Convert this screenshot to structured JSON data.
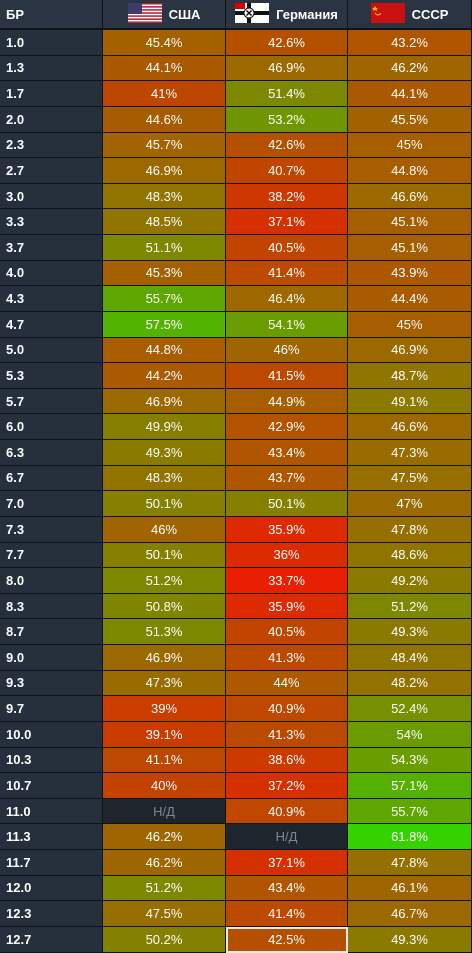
{
  "chart_data": {
    "type": "table",
    "columns": [
      {
        "label": "БР",
        "icon": null
      },
      {
        "label": "США",
        "icon": "usa-flag-icon"
      },
      {
        "label": "Германия",
        "icon": "germany-flag-icon"
      },
      {
        "label": "СССР",
        "icon": "ussr-flag-icon"
      }
    ],
    "rows": [
      {
        "br": "1.0",
        "values": [
          "45.4%",
          "42.6%",
          "43.2%"
        ]
      },
      {
        "br": "1.3",
        "values": [
          "44.1%",
          "46.9%",
          "46.2%"
        ]
      },
      {
        "br": "1.7",
        "values": [
          "41%",
          "51.4%",
          "44.1%"
        ]
      },
      {
        "br": "2.0",
        "values": [
          "44.6%",
          "53.2%",
          "45.5%"
        ]
      },
      {
        "br": "2.3",
        "values": [
          "45.7%",
          "42.6%",
          "45%"
        ]
      },
      {
        "br": "2.7",
        "values": [
          "46.9%",
          "40.7%",
          "44.8%"
        ]
      },
      {
        "br": "3.0",
        "values": [
          "48.3%",
          "38.2%",
          "46.6%"
        ]
      },
      {
        "br": "3.3",
        "values": [
          "48.5%",
          "37.1%",
          "45.1%"
        ]
      },
      {
        "br": "3.7",
        "values": [
          "51.1%",
          "40.5%",
          "45.1%"
        ]
      },
      {
        "br": "4.0",
        "values": [
          "45.3%",
          "41.4%",
          "43.9%"
        ]
      },
      {
        "br": "4.3",
        "values": [
          "55.7%",
          "46.4%",
          "44.4%"
        ]
      },
      {
        "br": "4.7",
        "values": [
          "57.5%",
          "54.1%",
          "45%"
        ]
      },
      {
        "br": "5.0",
        "values": [
          "44.8%",
          "46%",
          "46.9%"
        ]
      },
      {
        "br": "5.3",
        "values": [
          "44.2%",
          "41.5%",
          "48.7%"
        ]
      },
      {
        "br": "5.7",
        "values": [
          "46.9%",
          "44.9%",
          "49.1%"
        ]
      },
      {
        "br": "6.0",
        "values": [
          "49.9%",
          "42.9%",
          "46.6%"
        ]
      },
      {
        "br": "6.3",
        "values": [
          "49.3%",
          "43.4%",
          "47.3%"
        ]
      },
      {
        "br": "6.7",
        "values": [
          "48.3%",
          "43.7%",
          "47.5%"
        ]
      },
      {
        "br": "7.0",
        "values": [
          "50.1%",
          "50.1%",
          "47%"
        ]
      },
      {
        "br": "7.3",
        "values": [
          "46%",
          "35.9%",
          "47.8%"
        ]
      },
      {
        "br": "7.7",
        "values": [
          "50.1%",
          "36%",
          "48.6%"
        ]
      },
      {
        "br": "8.0",
        "values": [
          "51.2%",
          "33.7%",
          "49.2%"
        ]
      },
      {
        "br": "8.3",
        "values": [
          "50.8%",
          "35.9%",
          "51.2%"
        ]
      },
      {
        "br": "8.7",
        "values": [
          "51.3%",
          "40.5%",
          "49.3%"
        ]
      },
      {
        "br": "9.0",
        "values": [
          "46.9%",
          "41.3%",
          "48.4%"
        ]
      },
      {
        "br": "9.3",
        "values": [
          "47.3%",
          "44%",
          "48.2%"
        ]
      },
      {
        "br": "9.7",
        "values": [
          "39%",
          "40.9%",
          "52.4%"
        ]
      },
      {
        "br": "10.0",
        "values": [
          "39.1%",
          "41.3%",
          "54%"
        ]
      },
      {
        "br": "10.3",
        "values": [
          "41.1%",
          "38.6%",
          "54.3%"
        ]
      },
      {
        "br": "10.7",
        "values": [
          "40%",
          "37.2%",
          "57.1%"
        ]
      },
      {
        "br": "11.0",
        "values": [
          "Н/Д",
          "40.9%",
          "55.7%"
        ]
      },
      {
        "br": "11.3",
        "values": [
          "46.2%",
          "Н/Д",
          "61.8%"
        ]
      },
      {
        "br": "11.7",
        "values": [
          "46.2%",
          "37.1%",
          "47.8%"
        ]
      },
      {
        "br": "12.0",
        "values": [
          "51.2%",
          "43.4%",
          "46.1%"
        ]
      },
      {
        "br": "12.3",
        "values": [
          "47.5%",
          "41.4%",
          "46.7%"
        ]
      },
      {
        "br": "12.7",
        "values": [
          "50.2%",
          "42.5%",
          "49.3%"
        ]
      }
    ],
    "na_label": "Н/Д",
    "color_scale": {
      "low": "#e81f00",
      "mid": "#9a6a00",
      "high": "#33d400"
    },
    "highlighted_cell": {
      "row": "12.7",
      "column": "Германия"
    }
  }
}
